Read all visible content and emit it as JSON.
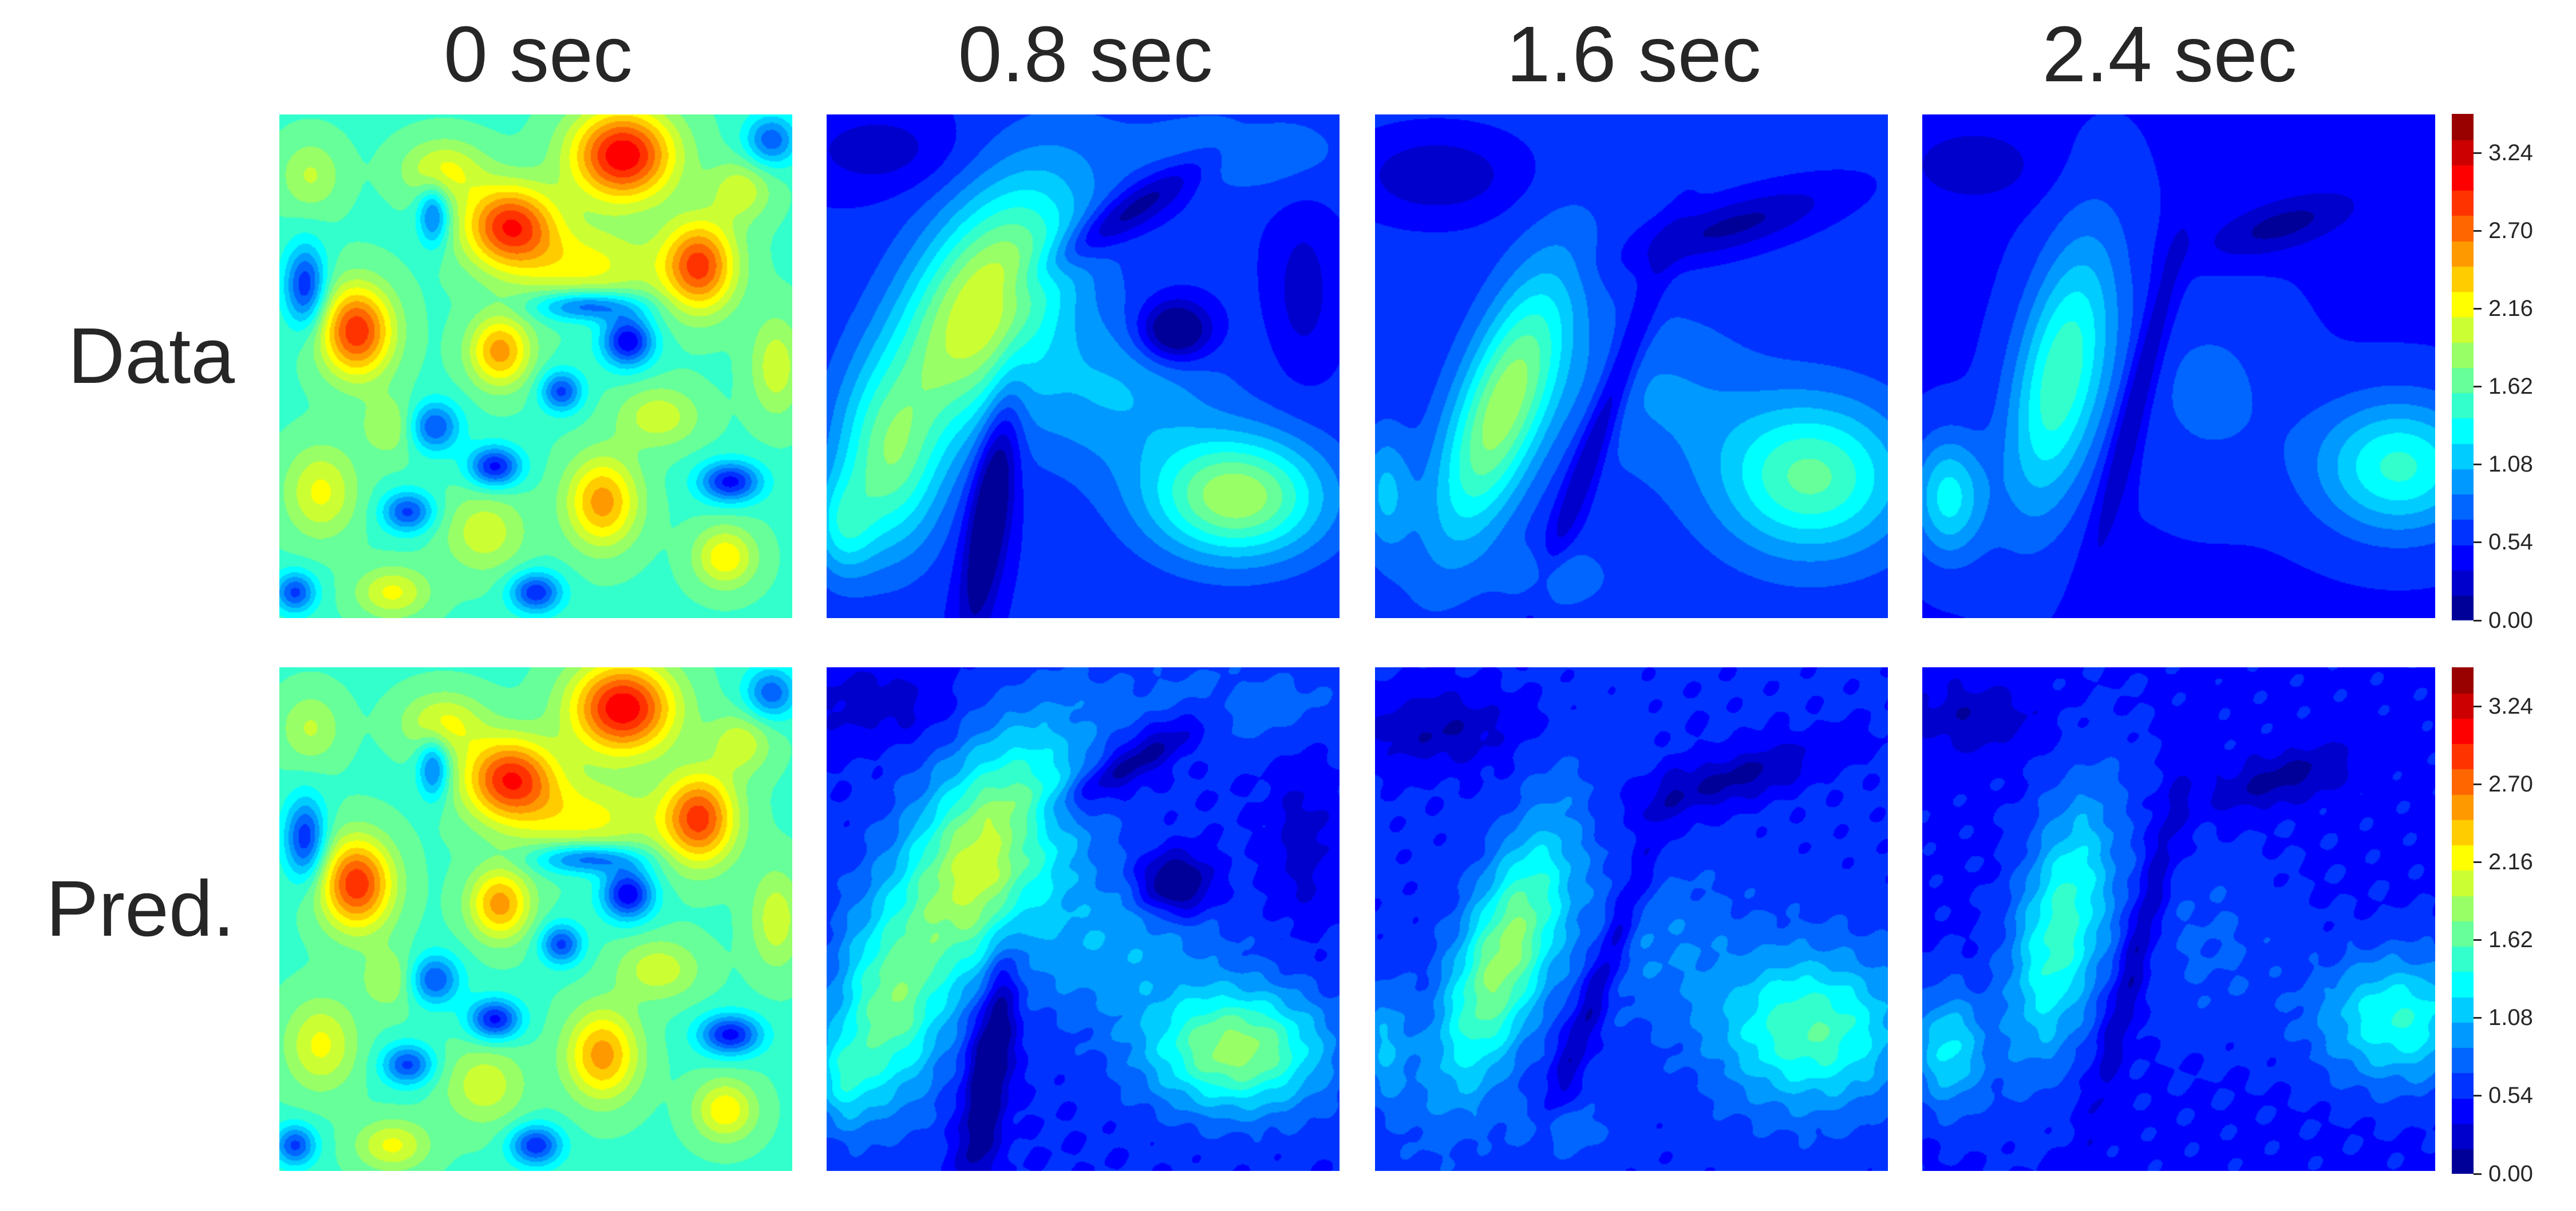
{
  "figure": {
    "column_titles": [
      "0 sec",
      "0.8 sec",
      "1.6 sec",
      "2.4 sec"
    ],
    "row_labels": [
      "Data",
      "Pred."
    ]
  },
  "chart_data": {
    "type": "heatmap",
    "colormap": "jet",
    "levels": 20,
    "value_range": [
      0.0,
      3.51
    ],
    "columns": [
      "0 sec",
      "0.8 sec",
      "1.6 sec",
      "2.4 sec"
    ],
    "rows": [
      "Data",
      "Pred."
    ],
    "colorbar_ticks": [
      "3.24",
      "2.70",
      "2.16",
      "1.62",
      "1.08",
      "0.54",
      "0.00"
    ],
    "colorbar_tick_values": [
      3.24,
      2.7,
      2.16,
      1.62,
      1.08,
      0.54,
      0.0
    ]
  },
  "colors": {
    "title_text": "#262626",
    "background": "#ffffff"
  }
}
